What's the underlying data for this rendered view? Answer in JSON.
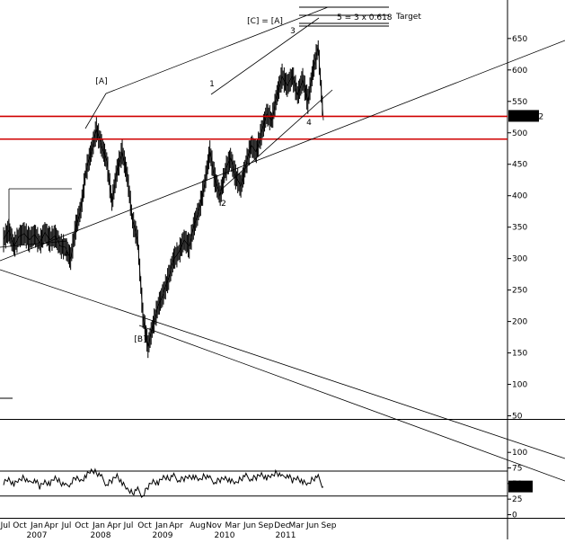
{
  "chart_data": [
    {
      "type": "line",
      "panel": "price",
      "title": "",
      "xlabel": "",
      "ylabel": "",
      "ylim": [
        0,
        660
      ],
      "y_ticks": [
        "50",
        "100",
        "150",
        "200",
        "250",
        "300",
        "350",
        "400",
        "450",
        "500",
        "550",
        "600",
        "650"
      ],
      "y_tick_values": [
        50,
        100,
        150,
        200,
        250,
        300,
        350,
        400,
        450,
        500,
        550,
        600,
        650
      ],
      "x": [
        "2006-07",
        "2006-08",
        "2006-09",
        "2006-10",
        "2006-11",
        "2006-12",
        "2007-01",
        "2007-02",
        "2007-03",
        "2007-04",
        "2007-05",
        "2007-06",
        "2007-07",
        "2007-08",
        "2007-09",
        "2007-10",
        "2007-11",
        "2007-12",
        "2008-01",
        "2008-02",
        "2008-03",
        "2008-04",
        "2008-05",
        "2008-06",
        "2008-07",
        "2008-08",
        "2008-09",
        "2008-10",
        "2008-11",
        "2008-12",
        "2009-01",
        "2009-02",
        "2009-03",
        "2009-04",
        "2009-05",
        "2009-06",
        "2009-07",
        "2009-08",
        "2009-09",
        "2009-10",
        "2009-11",
        "2009-12",
        "2010-01",
        "2010-02",
        "2010-03",
        "2010-04",
        "2010-05",
        "2010-06",
        "2010-07",
        "2010-08",
        "2010-09",
        "2010-10",
        "2010-11",
        "2010-12",
        "2011-01",
        "2011-02",
        "2011-03",
        "2011-04",
        "2011-05",
        "2011-06",
        "2011-07",
        "2011-08",
        "2011-09"
      ],
      "series": [
        {
          "values": [
            330,
            345,
            320,
            335,
            340,
            330,
            338,
            325,
            342,
            330,
            336,
            320,
            318,
            300,
            350,
            380,
            440,
            470,
            505,
            480,
            455,
            390,
            440,
            470,
            430,
            360,
            330,
            210,
            160,
            195,
            225,
            245,
            270,
            300,
            310,
            330,
            320,
            355,
            380,
            420,
            470,
            425,
            400,
            440,
            460,
            430,
            415,
            450,
            480,
            470,
            500,
            530,
            520,
            560,
            590,
            575,
            590,
            560,
            585,
            550,
            600,
            635,
            520
          ]
        }
      ],
      "annotations": {
        "wave_labels": [
          "[A]",
          "[B]",
          "[C] = [A]",
          "1",
          "2",
          "3",
          "4",
          "4"
        ],
        "fib_note": "5 = 3 x 0.618",
        "target_label": "Target",
        "price_tag": "526.192",
        "horizontal_levels": [
          526.192,
          490
        ]
      }
    },
    {
      "type": "line",
      "panel": "oscillator",
      "title": "",
      "xlabel": "",
      "ylabel": "",
      "ylim": [
        0,
        100
      ],
      "y_ticks": [
        "0",
        "25",
        "50",
        "75",
        "100"
      ],
      "y_tick_values": [
        0,
        25,
        50,
        75,
        100
      ],
      "reference_lines": [
        70,
        30
      ],
      "value_tag": "44.53",
      "series": [
        {
          "values": [
            52,
            58,
            48,
            55,
            60,
            50,
            57,
            45,
            54,
            49,
            59,
            52,
            46,
            50,
            60,
            55,
            62,
            70,
            68,
            60,
            48,
            55,
            64,
            50,
            40,
            35,
            40,
            30,
            45,
            55,
            50,
            60,
            58,
            62,
            55,
            58,
            62,
            60,
            55,
            63,
            58,
            52,
            56,
            60,
            54,
            50,
            58,
            62,
            57,
            60,
            66,
            58,
            62,
            68,
            60,
            64,
            55,
            60,
            52,
            48,
            58,
            60,
            44.53
          ]
        }
      ]
    }
  ],
  "x_axis": {
    "month_labels": [
      "Jul",
      "Oct",
      "Jan",
      "Apr",
      "Jul",
      "Oct",
      "Jan",
      "Apr",
      "Jul",
      "Oct",
      "Jan",
      "Apr",
      "Aug",
      "Nov",
      "Mar",
      "Jun",
      "Sep",
      "Dec",
      "Mar",
      "Jun",
      "Sep"
    ],
    "year_labels": [
      "2007",
      "2008",
      "2009",
      "2010",
      "2011"
    ]
  }
}
